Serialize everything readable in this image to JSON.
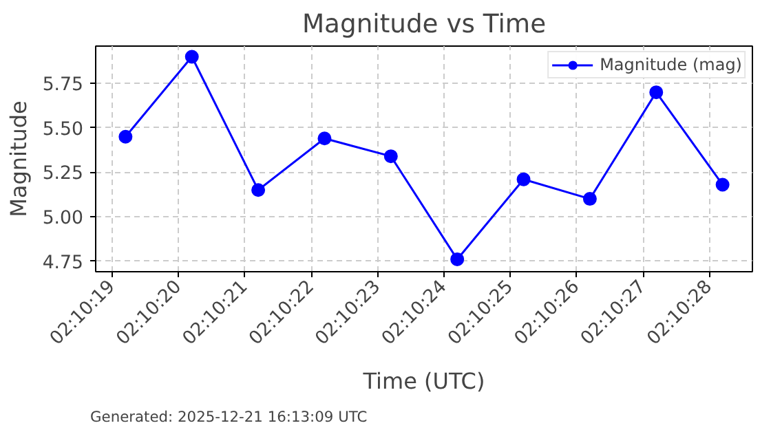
{
  "chart_data": {
    "type": "line",
    "title": "Magnitude vs Time",
    "xlabel": "Time (UTC)",
    "ylabel": "Magnitude",
    "annotations": [
      "Generated: 2025-12-21 16:13:09 UTC"
    ],
    "x": [
      2.172,
      2.1722778,
      2.1725556,
      2.1728333,
      2.1731111,
      2.1733889,
      2.1736667,
      2.1739444,
      2.1742222,
      2.1745
    ],
    "series": [
      {
        "name": "Magnitude (mag)",
        "color": "#0000ff",
        "values": [
          5.45,
          5.9,
          5.15,
          5.44,
          5.34,
          4.76,
          5.21,
          5.1,
          5.7,
          5.18
        ]
      }
    ],
    "xlim": [
      2.171875,
      2.174625
    ],
    "xticks": [
      {
        "value": 2.1719444,
        "label": "02:10:19"
      },
      {
        "value": 2.1722222,
        "label": "02:10:20"
      },
      {
        "value": 2.1725,
        "label": "02:10:21"
      },
      {
        "value": 2.1727778,
        "label": "02:10:22"
      },
      {
        "value": 2.1730556,
        "label": "02:10:23"
      },
      {
        "value": 2.1733333,
        "label": "02:10:24"
      },
      {
        "value": 2.1736111,
        "label": "02:10:25"
      },
      {
        "value": 2.1738889,
        "label": "02:10:26"
      },
      {
        "value": 2.1741667,
        "label": "02:10:27"
      },
      {
        "value": 2.1744444,
        "label": "02:10:28"
      }
    ],
    "ylim": [
      4.69,
      5.96
    ],
    "yticks": [
      4.75,
      {
        "value": 5.0,
        "label": "5.00"
      },
      5.25,
      {
        "value": 5.5,
        "label": "5.50"
      },
      5.75
    ],
    "grid": true,
    "legend": "top right",
    "marker": "circle",
    "line_style": "solid"
  }
}
